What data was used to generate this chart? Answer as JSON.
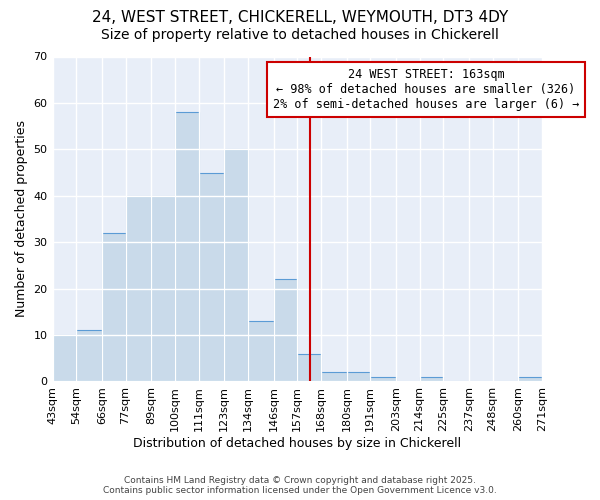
{
  "title": "24, WEST STREET, CHICKERELL, WEYMOUTH, DT3 4DY",
  "subtitle": "Size of property relative to detached houses in Chickerell",
  "xlabel": "Distribution of detached houses by size in Chickerell",
  "ylabel": "Number of detached properties",
  "bin_edges": [
    43,
    54,
    66,
    77,
    89,
    100,
    111,
    123,
    134,
    146,
    157,
    168,
    180,
    191,
    203,
    214,
    225,
    237,
    248,
    260,
    271
  ],
  "bar_heights": [
    10,
    11,
    32,
    40,
    40,
    58,
    45,
    50,
    13,
    22,
    6,
    2,
    2,
    1,
    0,
    1,
    0,
    0,
    0,
    1
  ],
  "bar_color": "#c9daea",
  "bar_edge_color": "#5b9bd5",
  "property_line_x": 163,
  "property_line_color": "#cc0000",
  "annotation_title": "24 WEST STREET: 163sqm",
  "annotation_line1": "← 98% of detached houses are smaller (326)",
  "annotation_line2": "2% of semi-detached houses are larger (6) →",
  "annotation_box_facecolor": "#ffffff",
  "annotation_box_edgecolor": "#cc0000",
  "ylim": [
    0,
    70
  ],
  "yticks": [
    0,
    10,
    20,
    30,
    40,
    50,
    60,
    70
  ],
  "background_color": "#ffffff",
  "plot_background_color": "#e8eef8",
  "grid_color": "#ffffff",
  "footer_line1": "Contains HM Land Registry data © Crown copyright and database right 2025.",
  "footer_line2": "Contains public sector information licensed under the Open Government Licence v3.0.",
  "title_fontsize": 11,
  "subtitle_fontsize": 10,
  "label_fontsize": 9,
  "tick_fontsize": 8,
  "annotation_fontsize": 8.5
}
